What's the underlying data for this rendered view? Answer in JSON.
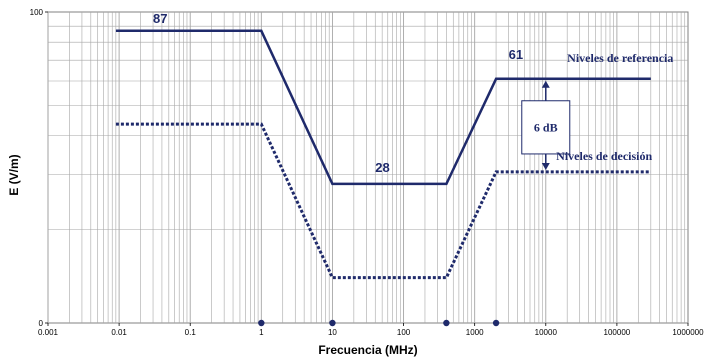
{
  "chart_data": {
    "type": "line",
    "x_scale": "log",
    "y_scale": "log",
    "xlabel": "Frecuencia (MHz)",
    "ylabel": "E (V/m)",
    "xlim": [
      0.001,
      1000000
    ],
    "ylim": [
      0,
      100
    ],
    "x_ticks": [
      "0.001",
      "0.01",
      "0.1",
      "1",
      "10",
      "100",
      "1000",
      "10000",
      "100000",
      "1000000"
    ],
    "y_ticks": [
      "0",
      "100"
    ],
    "grid": true,
    "series": [
      {
        "name": "Niveles de referencia",
        "style": "solid",
        "color": "#1f2a6b",
        "x": [
          0.009,
          1,
          10,
          400,
          2000,
          300000
        ],
        "y": [
          87,
          87,
          28,
          28,
          61,
          61
        ]
      },
      {
        "name": "Niveles de decisión",
        "style": "dotted",
        "color": "#1f2a6b",
        "x": [
          0.009,
          1,
          10,
          400,
          2000,
          300000
        ],
        "y": [
          43.6,
          43.6,
          14,
          14,
          30.6,
          30.6
        ]
      }
    ],
    "markers": [
      1,
      10,
      400,
      2000
    ],
    "annotations": {
      "low_value": "87",
      "mid_value": "28",
      "high_value": "61",
      "gap": "6 dB"
    }
  }
}
